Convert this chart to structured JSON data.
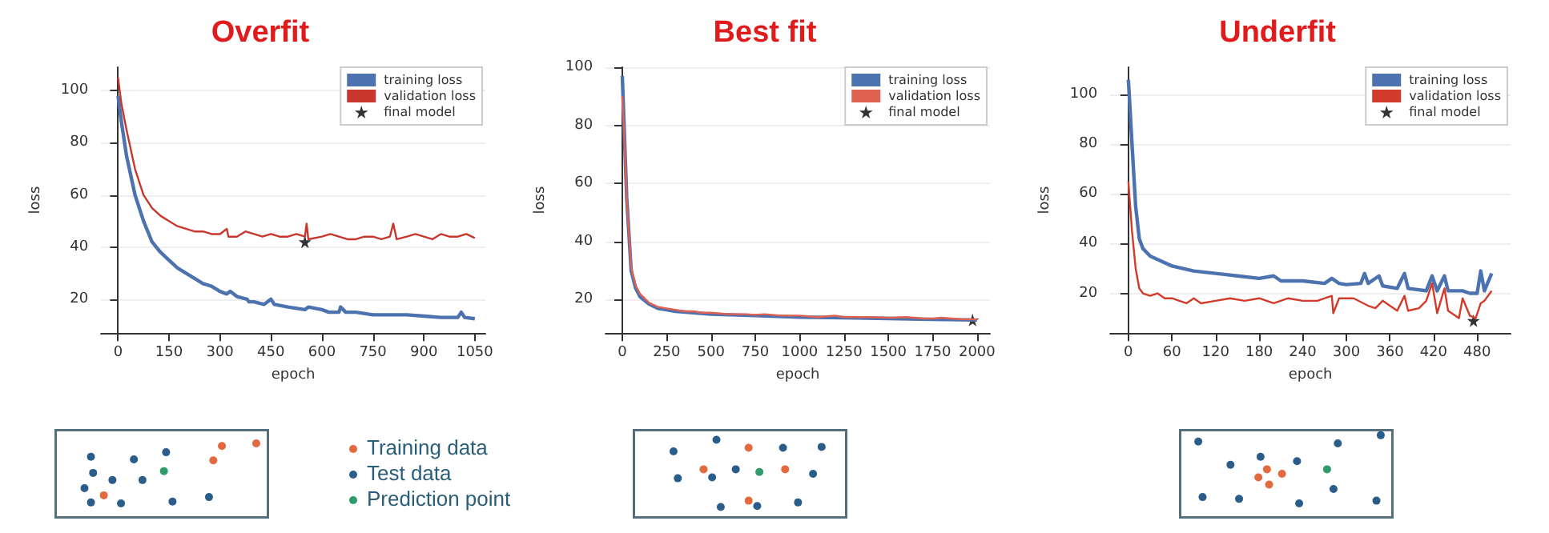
{
  "chart_data": [
    {
      "type": "line",
      "title": "Overfit",
      "xlabel": "epoch",
      "ylabel": "loss",
      "xlim": [
        -50,
        1081
      ],
      "ylim": [
        7,
        109
      ],
      "xticks": [
        0,
        150,
        300,
        450,
        600,
        750,
        900,
        1050
      ],
      "yticks": [
        20,
        40,
        60,
        80,
        100
      ],
      "grid": "y",
      "legend": "top right",
      "marker": "none",
      "line_style": "solid",
      "series": [
        {
          "name": "training loss",
          "color": "#4c72b0",
          "x": [
            0,
            10,
            25,
            50,
            75,
            100,
            125,
            150,
            175,
            200,
            225,
            250,
            275,
            300,
            320,
            330,
            350,
            380,
            385,
            400,
            430,
            450,
            460,
            500,
            550,
            560,
            600,
            620,
            650,
            655,
            670,
            700,
            750,
            800,
            850,
            900,
            950,
            1000,
            1010,
            1020,
            1050
          ],
          "values": [
            98,
            88,
            75,
            60,
            50,
            42,
            38,
            35,
            32,
            30,
            28,
            26,
            25,
            23,
            22,
            23,
            21,
            20,
            19,
            19,
            18,
            20,
            18,
            17,
            16,
            17,
            16,
            15,
            15,
            17,
            15,
            15,
            14,
            14,
            14,
            13.5,
            13,
            13,
            15,
            13,
            12.5
          ]
        },
        {
          "name": "validation loss",
          "color": "#c8372d",
          "x": [
            0,
            10,
            25,
            50,
            75,
            100,
            125,
            150,
            175,
            200,
            225,
            250,
            275,
            300,
            320,
            325,
            350,
            375,
            400,
            425,
            450,
            475,
            500,
            525,
            550,
            555,
            560,
            600,
            625,
            650,
            675,
            700,
            725,
            750,
            775,
            800,
            810,
            820,
            850,
            875,
            900,
            925,
            950,
            975,
            1000,
            1025,
            1050
          ],
          "values": [
            105,
            95,
            85,
            70,
            60,
            55,
            52,
            50,
            48,
            47,
            46,
            46,
            45,
            45,
            47,
            44,
            44,
            46,
            45,
            44,
            45,
            44,
            44,
            45,
            44,
            49,
            43,
            44,
            45,
            44,
            43,
            43,
            44,
            44,
            43,
            44,
            49,
            43,
            44,
            45,
            44,
            43,
            45,
            44,
            44,
            45,
            43.5
          ]
        },
        {
          "name": "final model",
          "type": "scatter",
          "marker": "star",
          "color": "#000000",
          "x": [
            550
          ],
          "values": [
            42
          ]
        }
      ]
    },
    {
      "type": "line",
      "title": "Best fit",
      "xlabel": "epoch",
      "ylabel": "loss",
      "xlim": [
        -94,
        2073
      ],
      "ylim": [
        8.5,
        100
      ],
      "xticks": [
        0,
        250,
        500,
        750,
        1000,
        1250,
        1500,
        1750,
        2000
      ],
      "yticks": [
        20,
        40,
        60,
        80,
        100
      ],
      "grid": "y",
      "legend": "top right",
      "marker": "none",
      "line_style": "solid",
      "series": [
        {
          "name": "training loss",
          "color": "#4c72b0",
          "x": [
            0,
            10,
            25,
            50,
            75,
            100,
            150,
            200,
            250,
            300,
            400,
            500,
            750,
            1000,
            1250,
            1500,
            1750,
            2000
          ],
          "values": [
            97,
            80,
            55,
            30,
            24,
            21,
            18.5,
            17,
            16.5,
            16,
            15.5,
            15,
            14.5,
            14,
            13.8,
            13.5,
            13.2,
            13
          ]
        },
        {
          "name": "validation loss",
          "color": "#e0614f",
          "x": [
            0,
            10,
            25,
            50,
            75,
            100,
            150,
            200,
            250,
            300,
            350,
            400,
            450,
            500,
            600,
            700,
            750,
            800,
            900,
            1000,
            1100,
            1200,
            1250,
            1300,
            1400,
            1500,
            1600,
            1700,
            1750,
            1800,
            1900,
            2000
          ],
          "values": [
            90,
            78,
            55,
            31,
            25,
            22,
            19,
            17.5,
            17,
            16.5,
            16,
            16,
            15.5,
            15.5,
            15,
            15,
            14.8,
            15,
            14.5,
            14.5,
            14,
            14.5,
            14,
            14,
            14,
            13.8,
            14,
            13.5,
            13.5,
            13.8,
            13.3,
            13.2
          ]
        },
        {
          "name": "final model",
          "type": "scatter",
          "marker": "star",
          "color": "#000000",
          "x": [
            1975
          ],
          "values": [
            13
          ]
        }
      ]
    },
    {
      "type": "line",
      "title": "Underfit",
      "xlabel": "epoch",
      "ylabel": "loss",
      "xlim": [
        -25,
        526
      ],
      "ylim": [
        4,
        111
      ],
      "xticks": [
        0,
        60,
        120,
        180,
        240,
        300,
        360,
        420,
        480
      ],
      "yticks": [
        20,
        40,
        60,
        80,
        100
      ],
      "grid": "y",
      "legend": "top right",
      "marker": "none",
      "line_style": "solid",
      "series": [
        {
          "name": "training loss",
          "color": "#4c72b0",
          "x": [
            0,
            5,
            10,
            15,
            20,
            30,
            45,
            60,
            90,
            120,
            150,
            180,
            200,
            210,
            240,
            270,
            280,
            290,
            300,
            320,
            325,
            330,
            345,
            350,
            370,
            380,
            385,
            410,
            418,
            425,
            435,
            440,
            460,
            470,
            480,
            485,
            490,
            500
          ],
          "values": [
            106,
            80,
            55,
            42,
            38,
            35,
            33,
            31,
            29,
            28,
            27,
            26,
            27,
            25,
            25,
            24,
            26,
            24,
            23.5,
            24,
            28,
            24,
            27,
            23,
            22,
            28,
            22,
            21,
            27,
            21,
            27,
            21,
            21,
            20,
            20,
            29,
            21,
            28
          ]
        },
        {
          "name": "validation loss",
          "color": "#d23a2a",
          "x": [
            0,
            5,
            10,
            15,
            20,
            30,
            40,
            50,
            60,
            70,
            80,
            90,
            100,
            120,
            140,
            160,
            180,
            200,
            220,
            240,
            260,
            280,
            282,
            290,
            310,
            330,
            340,
            350,
            370,
            380,
            385,
            400,
            410,
            418,
            425,
            435,
            440,
            455,
            460,
            470,
            478,
            485,
            490,
            500
          ],
          "values": [
            65,
            45,
            30,
            22,
            20,
            19,
            20,
            18,
            18,
            17,
            16,
            18,
            16,
            17,
            18,
            17,
            18,
            16,
            18,
            17,
            17,
            19,
            12,
            18,
            18,
            15,
            14,
            17,
            13,
            19,
            13,
            14,
            17,
            24,
            12,
            22,
            13,
            10,
            18,
            11,
            10,
            16,
            17,
            21
          ]
        },
        {
          "name": "final model",
          "type": "scatter",
          "marker": "star",
          "color": "#000000",
          "x": [
            475
          ],
          "values": [
            9
          ]
        }
      ]
    },
    {
      "type": "other",
      "annotations": [
        "Training data",
        "Test data",
        "Prediction point"
      ]
    }
  ]
}
